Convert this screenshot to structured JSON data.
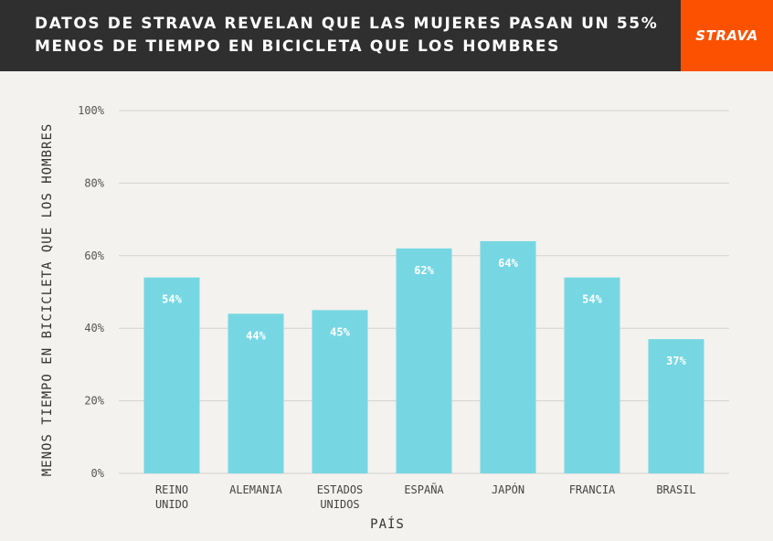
{
  "header": {
    "title": "DATOS DE STRAVA REVELAN QUE LAS MUJERES PASAN UN 55%\nMENOS DE TIEMPO EN BICICLETA QUE LOS HOMBRES",
    "brand": "STRAVA",
    "brand_color": "#fc5200",
    "background": "#2f2f2f"
  },
  "chart_data": {
    "type": "bar",
    "categories": [
      [
        "REINO",
        "UNIDO"
      ],
      [
        "ALEMANIA"
      ],
      [
        "ESTADOS",
        "UNIDOS"
      ],
      [
        "ESPAÑA"
      ],
      [
        "JAPÓN"
      ],
      [
        "FRANCIA"
      ],
      [
        "BRASIL"
      ]
    ],
    "values": [
      54,
      44,
      45,
      62,
      64,
      54,
      37
    ],
    "value_labels": [
      "54%",
      "44%",
      "45%",
      "62%",
      "64%",
      "54%",
      "37%"
    ],
    "xlabel": "PAÍS",
    "ylabel": "MENOS TIEMPO EN BICICLETA QUE LOS HOMBRES",
    "ylim": [
      0,
      100
    ],
    "yticks": [
      0,
      20,
      40,
      60,
      80,
      100
    ],
    "ytick_labels": [
      "0%",
      "20%",
      "40%",
      "60%",
      "80%",
      "100%"
    ],
    "bar_color": "#76d7e3",
    "grid": true
  }
}
